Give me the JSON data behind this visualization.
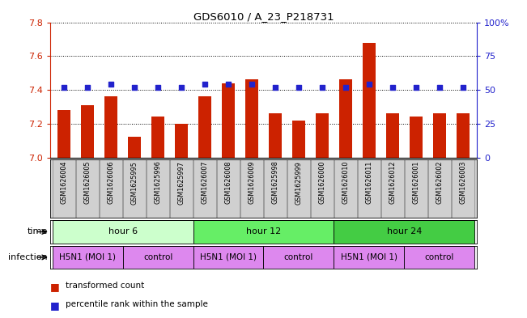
{
  "title": "GDS6010 / A_23_P218731",
  "samples": [
    "GSM1626004",
    "GSM1626005",
    "GSM1626006",
    "GSM1625995",
    "GSM1625996",
    "GSM1625997",
    "GSM1626007",
    "GSM1626008",
    "GSM1626009",
    "GSM1625998",
    "GSM1625999",
    "GSM1626000",
    "GSM1626010",
    "GSM1626011",
    "GSM1626012",
    "GSM1626001",
    "GSM1626002",
    "GSM1626003"
  ],
  "transformed_count": [
    7.28,
    7.31,
    7.36,
    7.12,
    7.24,
    7.2,
    7.36,
    7.44,
    7.46,
    7.26,
    7.22,
    7.26,
    7.46,
    7.68,
    7.26,
    7.24,
    7.26,
    7.26
  ],
  "percentile_rank": [
    52,
    52,
    54,
    52,
    52,
    52,
    54,
    54,
    54,
    52,
    52,
    52,
    52,
    54,
    52,
    52,
    52,
    52
  ],
  "ylim_left": [
    7.0,
    7.8
  ],
  "ylim_right": [
    0,
    100
  ],
  "yticks_left": [
    7.0,
    7.2,
    7.4,
    7.6,
    7.8
  ],
  "yticks_right": [
    0,
    25,
    50,
    75,
    100
  ],
  "bar_color": "#cc2200",
  "dot_color": "#2222cc",
  "time_groups": [
    {
      "label": "hour 6",
      "start": 0,
      "end": 6,
      "color": "#ccffcc"
    },
    {
      "label": "hour 12",
      "start": 6,
      "end": 12,
      "color": "#66ee66"
    },
    {
      "label": "hour 24",
      "start": 12,
      "end": 18,
      "color": "#44cc44"
    }
  ],
  "infect_segments": [
    {
      "label": "H5N1 (MOI 1)",
      "start": 0,
      "end": 3
    },
    {
      "label": "control",
      "start": 3,
      "end": 6
    },
    {
      "label": "H5N1 (MOI 1)",
      "start": 6,
      "end": 9
    },
    {
      "label": "control",
      "start": 9,
      "end": 12
    },
    {
      "label": "H5N1 (MOI 1)",
      "start": 12,
      "end": 15
    },
    {
      "label": "control",
      "start": 15,
      "end": 18
    }
  ],
  "infection_color": "#dd88ee",
  "tick_color_left": "#cc2200",
  "tick_color_right": "#2222cc",
  "sample_box_color": "#d0d0d0",
  "sample_box_edge": "#888888"
}
